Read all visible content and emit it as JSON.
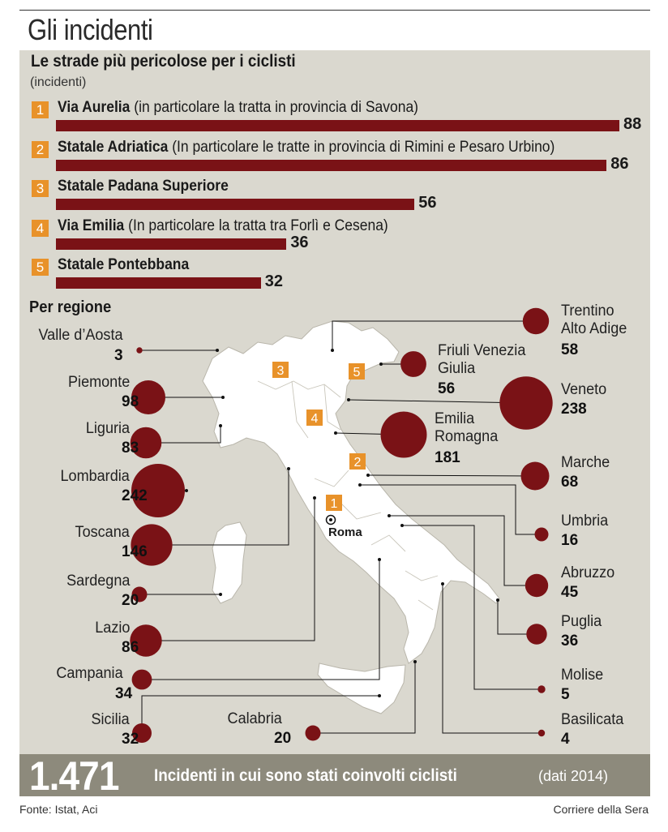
{
  "title": "Gli incidenti",
  "chart_data": [
    {
      "type": "bar",
      "title": "Le strade più pericolose per i ciclisti",
      "unit": "(incidenti)",
      "categories": [
        {
          "rank": "1",
          "name": "Via Aurelia",
          "detail": " (in particolare la tratta in provincia di Savona)"
        },
        {
          "rank": "2",
          "name": "Statale Adriatica",
          "detail": " (In particolare le tratte in provincia di Rimini e Pesaro Urbino)"
        },
        {
          "rank": "3",
          "name": "Statale Padana Superiore",
          "detail": ""
        },
        {
          "rank": "4",
          "name": "Via Emilia",
          "detail": " (In particolare la tratta tra Forlì e Cesena)"
        },
        {
          "rank": "5",
          "name": "Statale Pontebbana",
          "detail": ""
        }
      ],
      "values": [
        88,
        86,
        56,
        36,
        32
      ],
      "value_labels": [
        "88",
        "86",
        "56",
        "36",
        "32"
      ],
      "xlim": [
        0,
        88
      ],
      "bar_color": "#7a1216",
      "rank_color": "#e8922a"
    },
    {
      "type": "bubble-map",
      "title": "Per regione",
      "bubble_color": "#7a1216",
      "map_color": "#ffffff",
      "roads_on_map": [
        "1",
        "2",
        "3",
        "4",
        "5"
      ],
      "capital_label": "Roma",
      "regions": [
        {
          "name": "Valle d’Aosta",
          "value": 3,
          "label": "3",
          "side": "left"
        },
        {
          "name": "Piemonte",
          "value": 98,
          "label": "98",
          "side": "left"
        },
        {
          "name": "Liguria",
          "value": 83,
          "label": "83",
          "side": "left"
        },
        {
          "name": "Lombardia",
          "value": 242,
          "label": "242",
          "side": "left"
        },
        {
          "name": "Toscana",
          "value": 146,
          "label": "146",
          "side": "left"
        },
        {
          "name": "Sardegna",
          "value": 20,
          "label": "20",
          "side": "left"
        },
        {
          "name": "Lazio",
          "value": 86,
          "label": "86",
          "side": "left"
        },
        {
          "name": "Campania",
          "value": 34,
          "label": "34",
          "side": "left"
        },
        {
          "name": "Sicilia",
          "value": 32,
          "label": "32",
          "side": "left"
        },
        {
          "name": "Calabria",
          "value": 20,
          "label": "20",
          "side": "bottom"
        },
        {
          "name": "Trentino Alto Adige",
          "value": 58,
          "label": "58",
          "side": "right"
        },
        {
          "name": "Friuli Venezia Giulia",
          "value": 56,
          "label": "56",
          "side": "right"
        },
        {
          "name": "Veneto",
          "value": 238,
          "label": "238",
          "side": "right"
        },
        {
          "name": "Emilia Romagna",
          "value": 181,
          "label": "181",
          "side": "right"
        },
        {
          "name": "Marche",
          "value": 68,
          "label": "68",
          "side": "right"
        },
        {
          "name": "Umbria",
          "value": 16,
          "label": "16",
          "side": "right"
        },
        {
          "name": "Abruzzo",
          "value": 45,
          "label": "45",
          "side": "right"
        },
        {
          "name": "Puglia",
          "value": 36,
          "label": "36",
          "side": "right"
        },
        {
          "name": "Molise",
          "value": 5,
          "label": "5",
          "side": "right"
        },
        {
          "name": "Basilicata",
          "value": 4,
          "label": "4",
          "side": "right"
        }
      ]
    }
  ],
  "total": {
    "value": "1.471",
    "label": "Incidenti in cui sono stati coinvolti ciclisti",
    "note": "(dati 2014)"
  },
  "footer": {
    "source": "Fonte: Istat, Aci",
    "credit": "Corriere della Sera"
  }
}
